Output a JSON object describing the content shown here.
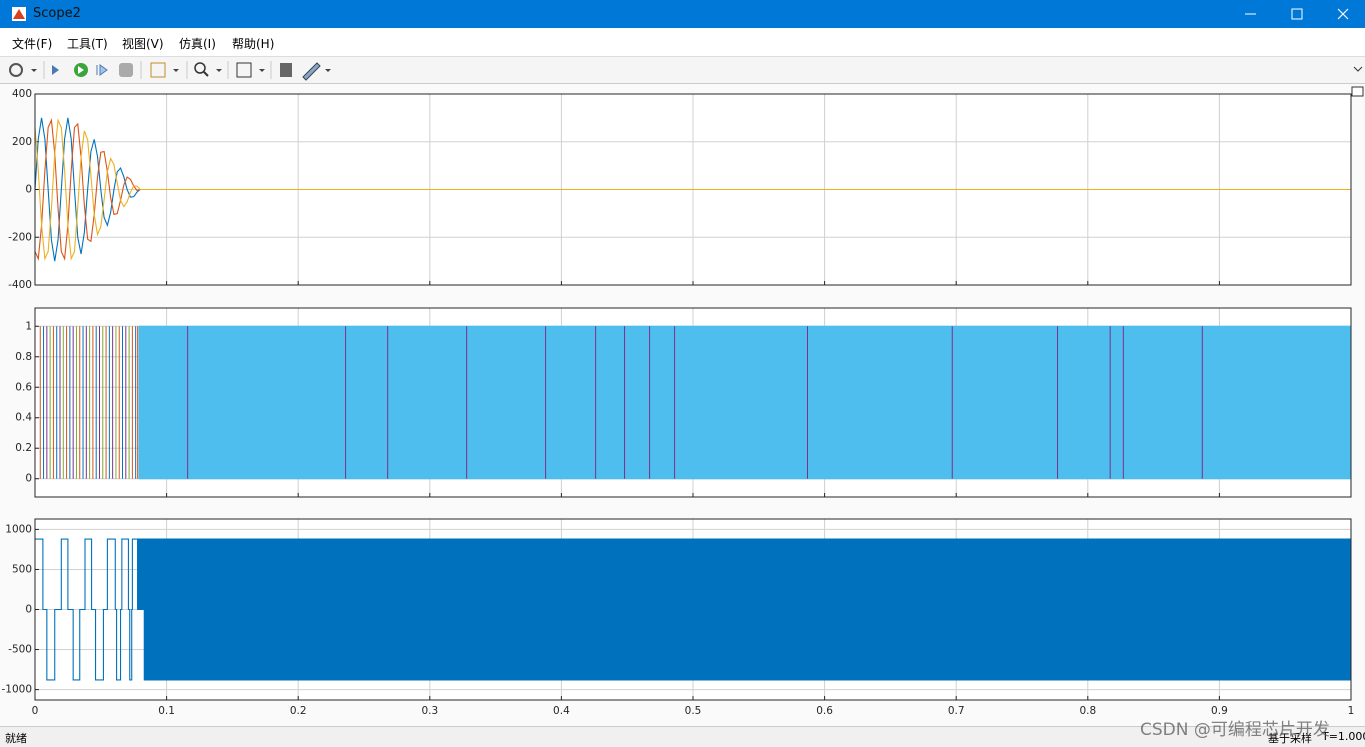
{
  "window": {
    "title": "Scope2",
    "menu": [
      "文件(F)",
      "工具(T)",
      "视图(V)",
      "仿真(I)",
      "帮助(H)"
    ],
    "status": "就绪",
    "status_right": [
      "基于采样",
      "T=1.000"
    ],
    "watermark": "CSDN @可编程芯片开发"
  },
  "chart_data": [
    {
      "type": "line",
      "x": [
        0,
        0.0025,
        0.005,
        0.0075,
        0.01,
        0.0125,
        0.015,
        0.0175,
        0.02,
        0.0225,
        0.025,
        0.0275,
        0.03,
        0.0325,
        0.035,
        0.0375,
        0.04,
        0.0425,
        0.045,
        0.0475,
        0.05,
        0.0525,
        0.055,
        0.0575,
        0.06,
        0.0625,
        0.065,
        0.0675,
        0.07,
        0.0725,
        0.075,
        0.0775,
        0.08,
        1
      ],
      "series": [
        {
          "color": "#0072bd",
          "style": "line",
          "values": [
            0,
            212,
            300,
            212,
            0,
            -212,
            -300,
            -212,
            0,
            212,
            300,
            212,
            0,
            -201,
            -270,
            -180,
            0,
            159,
            210,
            138,
            0,
            -117,
            -150,
            -95,
            0,
            74,
            90,
            53,
            0,
            -32,
            -30,
            -11,
            0,
            0
          ]
        },
        {
          "color": "#d95319",
          "style": "line",
          "values": [
            -260,
            -290,
            -150,
            78,
            260,
            290,
            150,
            -78,
            -260,
            -290,
            -150,
            78,
            260,
            275,
            135,
            -66,
            -208,
            -217,
            -105,
            51,
            156,
            159,
            75,
            -35,
            -104,
            -101,
            -45,
            19,
            52,
            43,
            15,
            -4,
            0,
            0
          ]
        },
        {
          "color": "#edb120",
          "style": "line",
          "values": [
            260,
            78,
            -150,
            -290,
            -260,
            -78,
            150,
            290,
            260,
            78,
            -150,
            -290,
            -260,
            -74,
            135,
            246,
            208,
            58,
            -105,
            -188,
            -156,
            -43,
            75,
            130,
            104,
            27,
            -45,
            -72,
            -52,
            -12,
            15,
            14,
            0,
            0
          ]
        }
      ],
      "xlim": [
        0,
        1
      ],
      "xticks": [
        0,
        0.1,
        0.2,
        0.3,
        0.4,
        0.5,
        0.6,
        0.7,
        0.8,
        0.9,
        1
      ],
      "ylim": [
        -400,
        400
      ],
      "yticks": [
        -400,
        -200,
        0,
        200,
        400
      ],
      "grid": true
    },
    {
      "type": "line",
      "series": [
        {
          "color": "#4dbeee",
          "style": "fill",
          "x": [
            0.079,
            0.079,
            1,
            1
          ],
          "values": [
            0,
            1,
            1,
            0
          ]
        },
        {
          "color": "#d95319",
          "style": "stem",
          "x": [
            0.004,
            0.014,
            0.024,
            0.034,
            0.044,
            0.054,
            0.064,
            0.074,
            0.078
          ],
          "values": [
            1,
            1,
            1,
            1,
            1,
            1,
            1,
            1,
            1
          ]
        },
        {
          "color": "#0072bd",
          "style": "stem",
          "x": [
            0.0065,
            0.0165,
            0.0265,
            0.0365,
            0.0465,
            0.0565,
            0.0665,
            0.0765
          ],
          "values": [
            1,
            1,
            1,
            1,
            1,
            1,
            1,
            1
          ]
        },
        {
          "color": "#7e2f8e",
          "style": "stem",
          "x": [
            0.009,
            0.019,
            0.029,
            0.039,
            0.049,
            0.059,
            0.069,
            0.116,
            0.236,
            0.268,
            0.328,
            0.388,
            0.426,
            0.448,
            0.467,
            0.486,
            0.587,
            0.697,
            0.777,
            0.817,
            0.827,
            0.887
          ],
          "values": [
            1,
            1,
            1,
            1,
            1,
            1,
            1,
            1,
            1,
            1,
            1,
            1,
            1,
            1,
            1,
            1,
            1,
            1,
            1,
            1,
            1,
            1
          ]
        },
        {
          "color": "#77ac30",
          "style": "stem",
          "x": [
            0.0115,
            0.0215,
            0.0315,
            0.0415,
            0.0515,
            0.0615,
            0.0715
          ],
          "values": [
            1,
            1,
            1,
            1,
            1,
            1,
            1
          ]
        }
      ],
      "xlim": [
        0,
        1
      ],
      "xticks": [
        0,
        0.1,
        0.2,
        0.3,
        0.4,
        0.5,
        0.6,
        0.7,
        0.8,
        0.9,
        1
      ],
      "ylim": [
        -0.12,
        1.12
      ],
      "yticks": [
        0,
        0.2,
        0.4,
        0.6,
        0.8,
        1
      ],
      "grid": true
    },
    {
      "type": "line",
      "series": [
        {
          "color": "#0072bd",
          "style": "line",
          "x": [
            0,
            0.006,
            0.006,
            0.009,
            0.009,
            0.015,
            0.015,
            0.02,
            0.02,
            0.025,
            0.025,
            0.029,
            0.029,
            0.034,
            0.034,
            0.038,
            0.038,
            0.043,
            0.043,
            0.046,
            0.046,
            0.052,
            0.052,
            0.055,
            0.055,
            0.061,
            0.061,
            0.062,
            0.062,
            0.065,
            0.065,
            0.066,
            0.066,
            0.071,
            0.071,
            0.072,
            0.072,
            0.0735,
            0.0735,
            0.074,
            0.074,
            0.078,
            0.078
          ],
          "values": [
            880,
            880,
            0,
            0,
            -880,
            -880,
            0,
            0,
            880,
            880,
            0,
            0,
            -880,
            -880,
            0,
            0,
            880,
            880,
            0,
            0,
            -880,
            -880,
            0,
            0,
            880,
            880,
            0,
            0,
            -880,
            -880,
            0,
            0,
            880,
            880,
            0,
            0,
            -880,
            -880,
            0,
            0,
            880,
            880,
            0
          ]
        },
        {
          "color": "#0072bd",
          "style": "fill",
          "x": [
            0.078,
            0.078,
            1,
            1
          ],
          "values": [
            0,
            880,
            880,
            0
          ]
        },
        {
          "color": "#0072bd",
          "style": "fill",
          "x": [
            0.083,
            0.083,
            1,
            1
          ],
          "values": [
            0,
            -880,
            -880,
            0
          ]
        }
      ],
      "xlim": [
        0,
        1
      ],
      "xticks": [
        0,
        0.1,
        0.2,
        0.3,
        0.4,
        0.5,
        0.6,
        0.7,
        0.8,
        0.9,
        1
      ],
      "ylim": [
        -1130,
        1130
      ],
      "yticks": [
        -1000,
        -500,
        0,
        500,
        1000
      ],
      "grid": true
    }
  ]
}
